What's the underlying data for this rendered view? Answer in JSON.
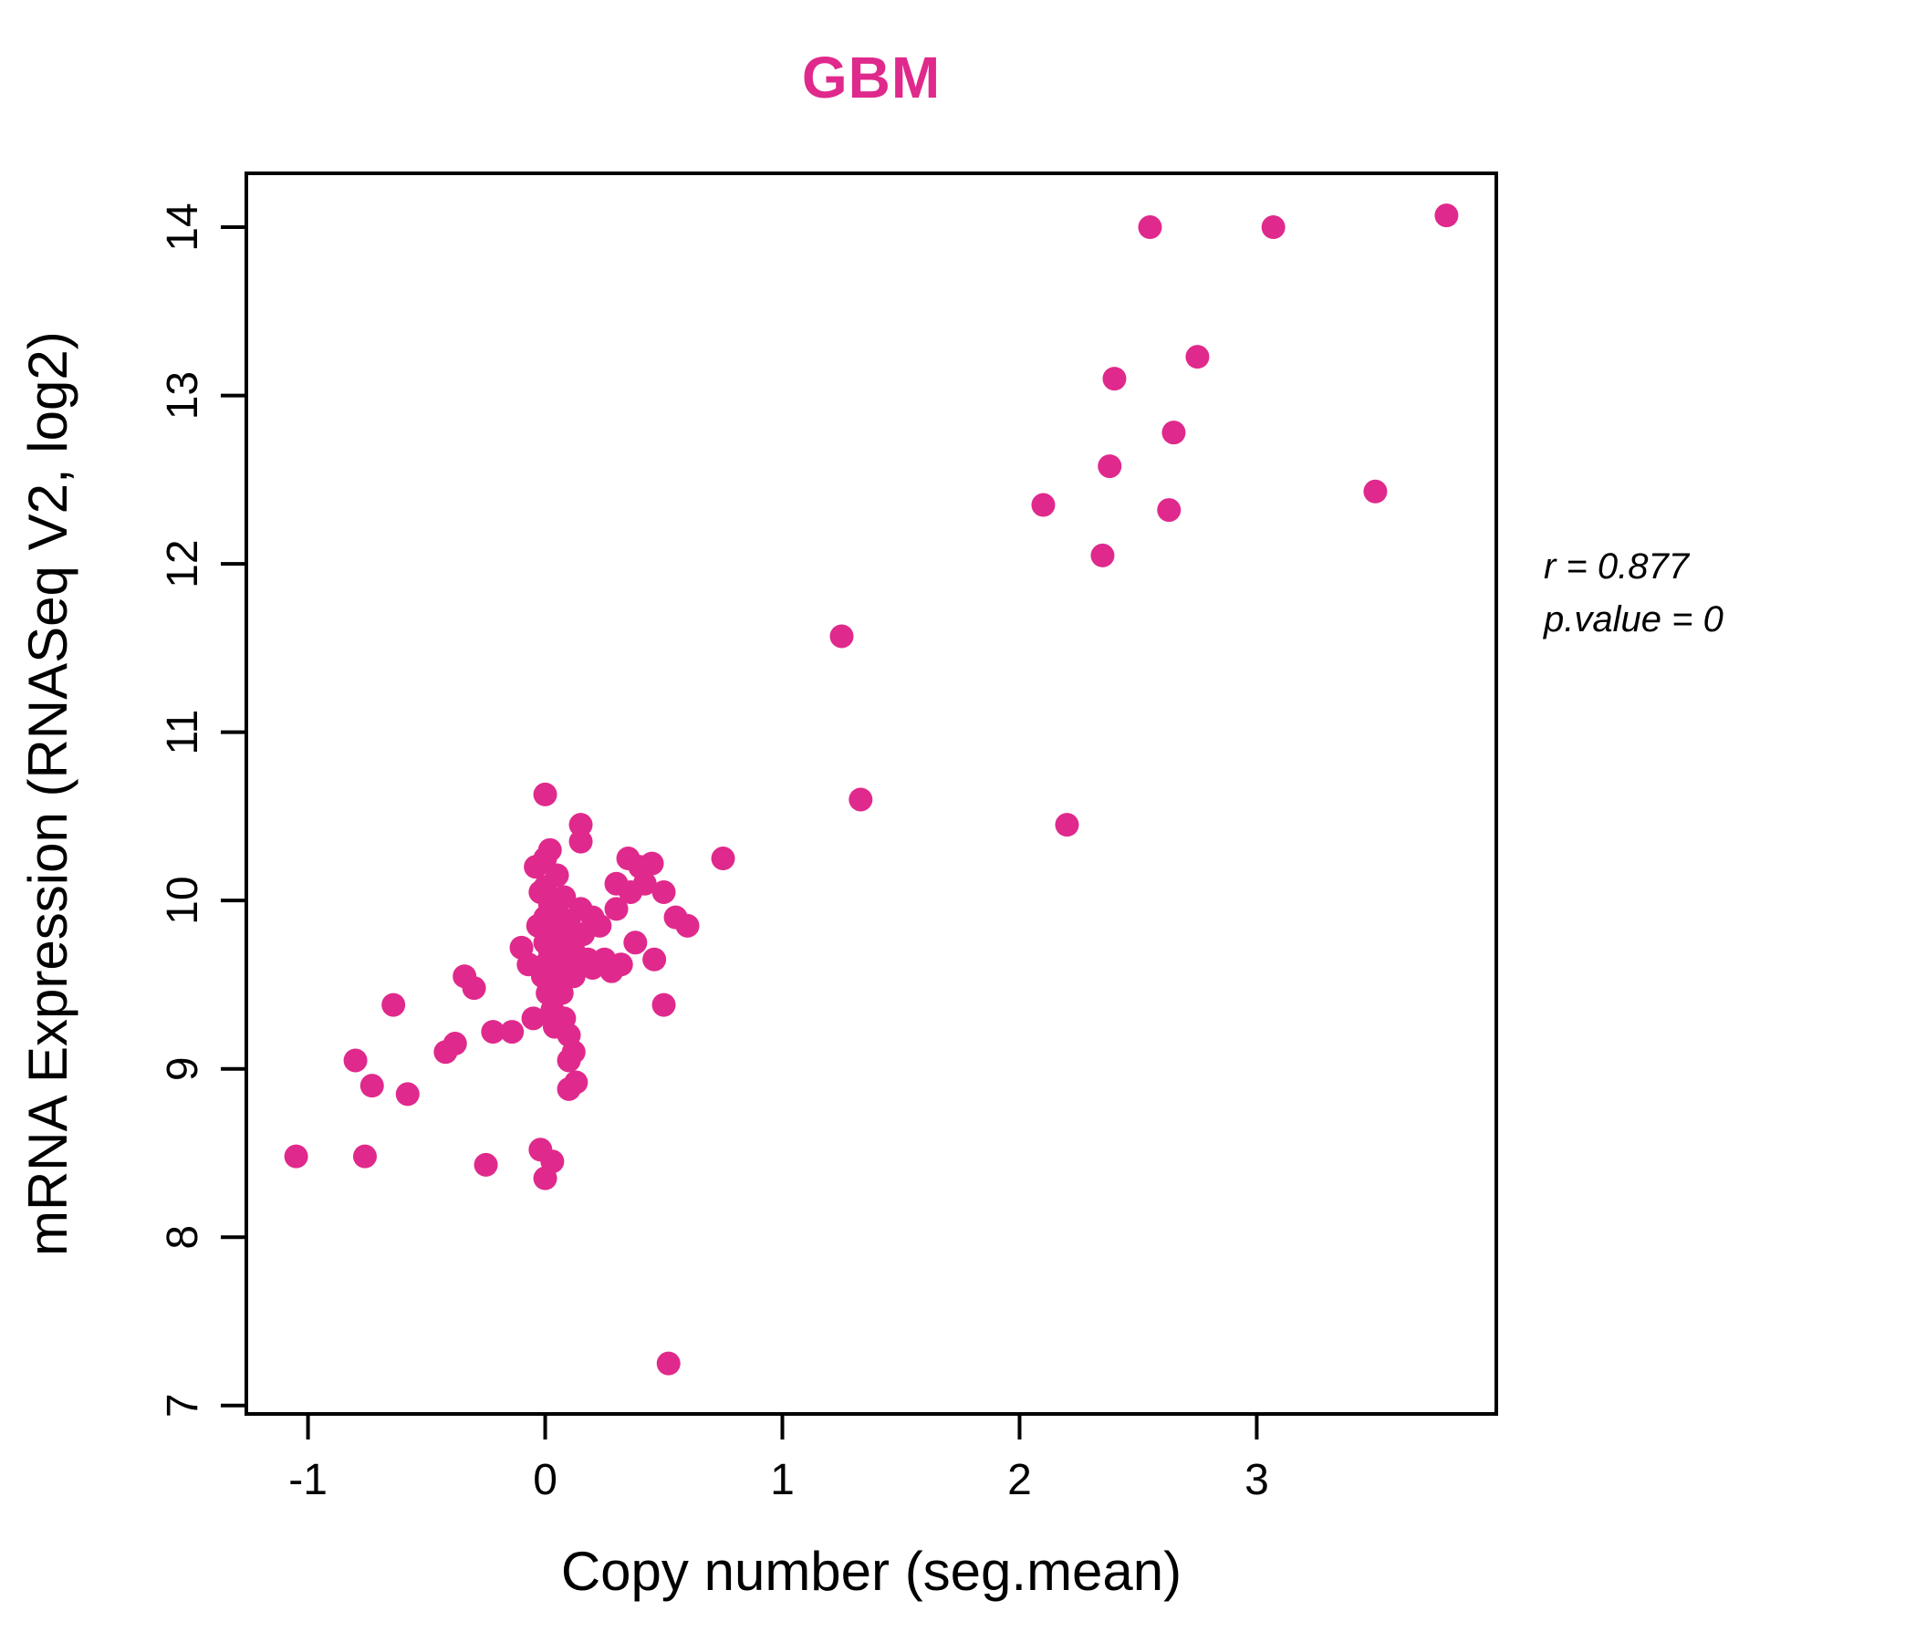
{
  "chart_data": {
    "type": "scatter",
    "title": "GBM",
    "xlabel": "Copy number (seg.mean)",
    "ylabel": "mRNA Expression (RNASeq V2, log2)",
    "xlim": [
      -1.26,
      4.01
    ],
    "ylim": [
      6.95,
      14.32
    ],
    "x_ticks": [
      -1,
      0,
      1,
      2,
      3
    ],
    "y_ticks": [
      7,
      8,
      9,
      10,
      11,
      12,
      13,
      14
    ],
    "grid": false,
    "legend": "none",
    "point_color": "#E0298C",
    "title_color": "#E0298C",
    "axis_color": "#000000",
    "annotation": {
      "line1": "r = 0.877",
      "line2": "p.value = 0"
    },
    "points": [
      [
        -1.05,
        8.48
      ],
      [
        -0.8,
        9.05
      ],
      [
        -0.76,
        8.48
      ],
      [
        -0.73,
        8.9
      ],
      [
        -0.64,
        9.38
      ],
      [
        -0.58,
        8.85
      ],
      [
        -0.42,
        9.1
      ],
      [
        -0.38,
        9.15
      ],
      [
        -0.34,
        9.55
      ],
      [
        -0.3,
        9.48
      ],
      [
        -0.25,
        8.43
      ],
      [
        -0.22,
        9.22
      ],
      [
        -0.14,
        9.22
      ],
      [
        -0.02,
        8.52
      ],
      [
        0.0,
        8.35
      ],
      [
        0.03,
        8.45
      ],
      [
        0.1,
        8.88
      ],
      [
        0.52,
        7.25
      ],
      [
        -0.1,
        9.72
      ],
      [
        -0.07,
        9.62
      ],
      [
        -0.05,
        9.3
      ],
      [
        -0.04,
        10.2
      ],
      [
        -0.03,
        9.85
      ],
      [
        -0.02,
        10.05
      ],
      [
        -0.01,
        9.55
      ],
      [
        0.0,
        10.63
      ],
      [
        0.0,
        10.25
      ],
      [
        0.0,
        10.08
      ],
      [
        0.0,
        9.9
      ],
      [
        0.0,
        9.75
      ],
      [
        0.0,
        9.62
      ],
      [
        0.01,
        9.45
      ],
      [
        0.02,
        10.3
      ],
      [
        0.02,
        9.98
      ],
      [
        0.02,
        9.7
      ],
      [
        0.03,
        9.58
      ],
      [
        0.03,
        9.35
      ],
      [
        0.04,
        9.25
      ],
      [
        0.05,
        10.15
      ],
      [
        0.05,
        9.93
      ],
      [
        0.05,
        9.8
      ],
      [
        0.05,
        9.66
      ],
      [
        0.06,
        9.55
      ],
      [
        0.07,
        9.72
      ],
      [
        0.07,
        9.45
      ],
      [
        0.08,
        10.02
      ],
      [
        0.08,
        9.85
      ],
      [
        0.08,
        9.3
      ],
      [
        0.09,
        9.62
      ],
      [
        0.1,
        9.88
      ],
      [
        0.1,
        9.75
      ],
      [
        0.1,
        9.2
      ],
      [
        0.1,
        9.05
      ],
      [
        0.12,
        9.7
      ],
      [
        0.12,
        9.55
      ],
      [
        0.12,
        9.1
      ],
      [
        0.13,
        8.92
      ],
      [
        0.15,
        10.45
      ],
      [
        0.15,
        10.35
      ],
      [
        0.15,
        9.95
      ],
      [
        0.16,
        9.8
      ],
      [
        0.18,
        9.65
      ],
      [
        0.2,
        9.9
      ],
      [
        0.2,
        9.6
      ],
      [
        0.23,
        9.85
      ],
      [
        0.25,
        9.65
      ],
      [
        0.28,
        9.58
      ],
      [
        0.3,
        10.1
      ],
      [
        0.3,
        9.95
      ],
      [
        0.32,
        9.62
      ],
      [
        0.35,
        10.25
      ],
      [
        0.36,
        10.05
      ],
      [
        0.38,
        9.75
      ],
      [
        0.4,
        10.2
      ],
      [
        0.42,
        10.1
      ],
      [
        0.45,
        10.22
      ],
      [
        0.46,
        9.65
      ],
      [
        0.5,
        10.05
      ],
      [
        0.5,
        9.38
      ],
      [
        0.55,
        9.9
      ],
      [
        0.6,
        9.85
      ],
      [
        0.75,
        10.25
      ],
      [
        1.25,
        11.57
      ],
      [
        1.33,
        10.6
      ],
      [
        2.1,
        12.35
      ],
      [
        2.2,
        10.45
      ],
      [
        2.35,
        12.05
      ],
      [
        2.38,
        12.58
      ],
      [
        2.4,
        13.1
      ],
      [
        2.55,
        14.0
      ],
      [
        2.63,
        12.32
      ],
      [
        2.65,
        12.78
      ],
      [
        2.75,
        13.23
      ],
      [
        3.07,
        14.0
      ],
      [
        3.5,
        12.43
      ],
      [
        3.8,
        14.07
      ]
    ]
  }
}
